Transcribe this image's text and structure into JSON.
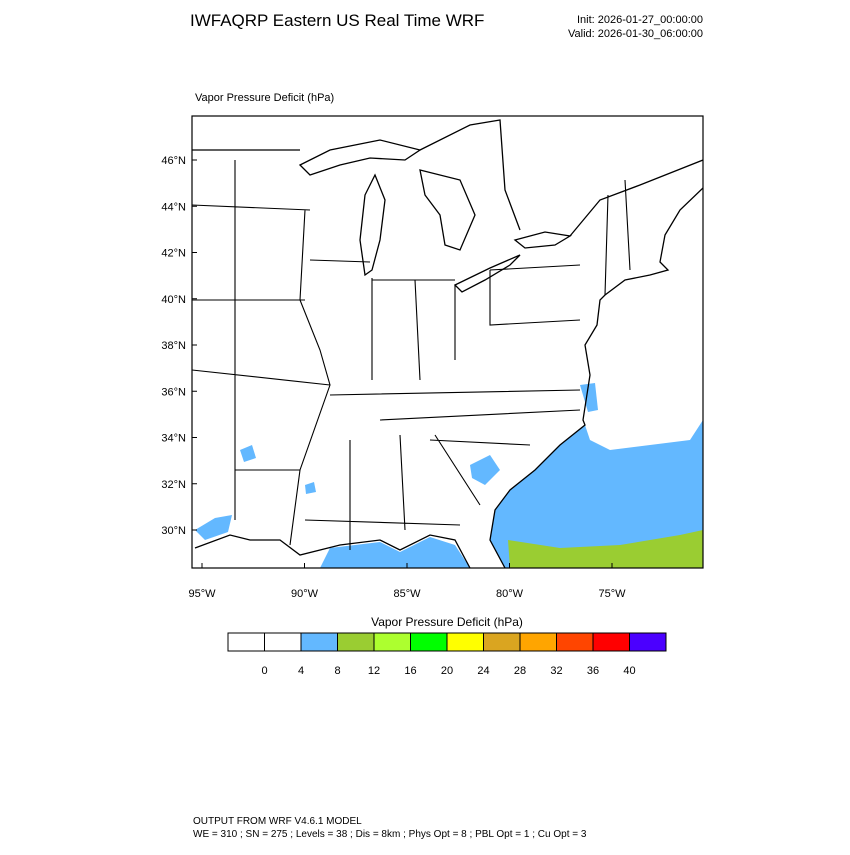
{
  "header": {
    "title": "IWFAQRP Eastern US Real Time WRF",
    "init": "Init: 2026-01-27_00:00:00",
    "valid": "Valid: 2026-01-30_06:00:00"
  },
  "map": {
    "subtitle": "Vapor Pressure Deficit   (hPa)",
    "lat_labels": [
      "46°N",
      "44°N",
      "42°N",
      "40°N",
      "38°N",
      "36°N",
      "34°N",
      "32°N",
      "30°N"
    ],
    "lon_labels": [
      "95°W",
      "90°W",
      "85°W",
      "80°W",
      "75°W"
    ]
  },
  "colorbar": {
    "title": "Vapor Pressure Deficit  (hPa)",
    "colors": [
      "#ffffff",
      "#ffffff",
      "#63b8ff",
      "#9acd32",
      "#adff2f",
      "#00ff00",
      "#ffff00",
      "#daa520",
      "#ffa500",
      "#ff4500",
      "#ff0000",
      "#4b00ff"
    ],
    "ticks": [
      0,
      4,
      8,
      12,
      16,
      20,
      24,
      28,
      32,
      36,
      40
    ]
  },
  "footer": {
    "line1": "OUTPUT FROM WRF V4.6.1 MODEL",
    "line2": "WE = 310 ; SN = 275 ; Levels = 38 ; Dis = 8km ; Phys Opt = 8 ; PBL Opt = 1 ; Cu Opt = 3"
  }
}
